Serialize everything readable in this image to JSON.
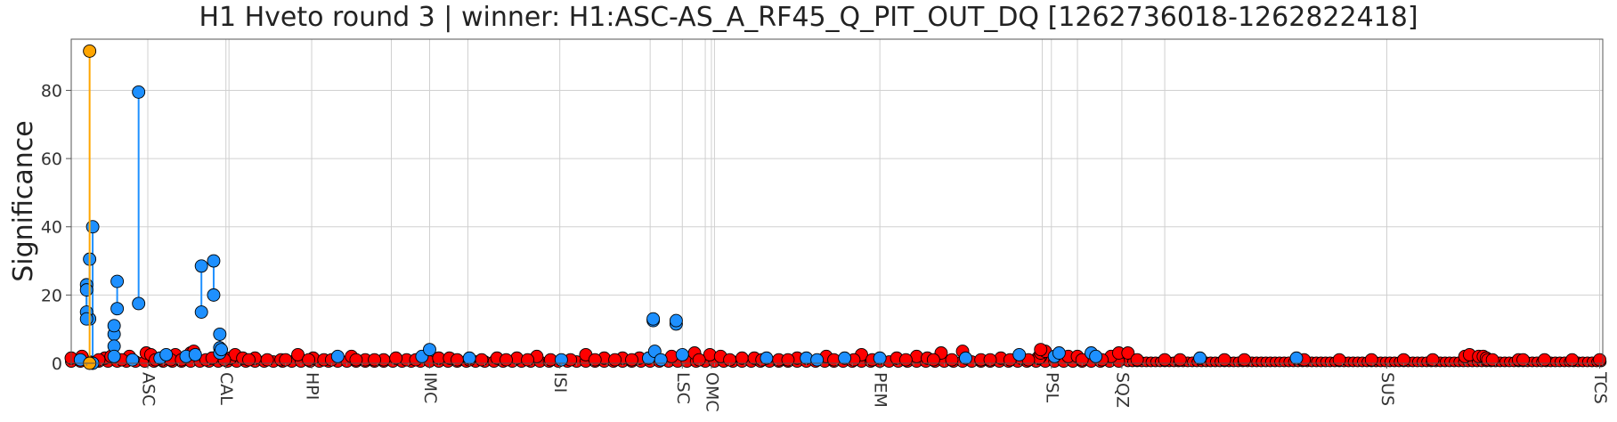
{
  "chart_data": {
    "type": "scatter",
    "title": "H1 Hveto round 3 | winner: H1:ASC-AS_A_RF45_Q_PIT_OUT_DQ [1262736018-1262822418]",
    "ylabel": "Significance",
    "xlabel": "",
    "ylim": [
      0,
      95
    ],
    "yticks": [
      0,
      20,
      40,
      60,
      80
    ],
    "grid": true,
    "colors": {
      "winner": "#ffa500",
      "current_round": "#1e90ff",
      "previous_round": "#ff0000",
      "marker_edge": "#000000",
      "grid": "#d0d0d0"
    },
    "subsystem_groups": [
      "ASC",
      "CAL",
      "HPI",
      "IMC",
      "ISI",
      "LSC",
      "OMC",
      "PEM",
      "PSL",
      "SQZ",
      "SUS",
      "TCS"
    ],
    "x_count": 1000,
    "winner_point": {
      "x": 12,
      "y_previous": 0,
      "y_current": 91.5
    },
    "stems": [
      {
        "x": 14,
        "y_previous": 0,
        "y_current": 40
      },
      {
        "x": 12,
        "y_previous": 13,
        "y_current": 30.5
      },
      {
        "x": 10,
        "y_previous": 15,
        "y_current": 23
      },
      {
        "x": 10,
        "y_previous": 13,
        "y_current": 21.5
      },
      {
        "x": 28,
        "y_previous": 8.5,
        "y_current": 11
      },
      {
        "x": 30,
        "y_previous": 16,
        "y_current": 24
      },
      {
        "x": 44,
        "y_previous": 17.5,
        "y_current": 79.5
      },
      {
        "x": 85,
        "y_previous": 15,
        "y_current": 28.5
      },
      {
        "x": 93,
        "y_previous": 20,
        "y_current": 30
      },
      {
        "x": 97,
        "y_previous": 4.5,
        "y_current": 8.5
      },
      {
        "x": 380,
        "y_previous": 12.5,
        "y_current": 13
      },
      {
        "x": 395,
        "y_previous": 11.5,
        "y_current": 12.5
      }
    ],
    "current_points": [
      {
        "x": 6,
        "y": 1
      },
      {
        "x": 28,
        "y": 5
      },
      {
        "x": 28,
        "y": 2
      },
      {
        "x": 40,
        "y": 1
      },
      {
        "x": 58,
        "y": 1.5
      },
      {
        "x": 62,
        "y": 2.5
      },
      {
        "x": 75,
        "y": 2
      },
      {
        "x": 81,
        "y": 2.5
      },
      {
        "x": 97,
        "y": 3
      },
      {
        "x": 98,
        "y": 4
      },
      {
        "x": 174,
        "y": 2
      },
      {
        "x": 229,
        "y": 2
      },
      {
        "x": 234,
        "y": 4
      },
      {
        "x": 260,
        "y": 1.5
      },
      {
        "x": 320,
        "y": 1
      },
      {
        "x": 377,
        "y": 1.5
      },
      {
        "x": 381,
        "y": 3.5
      },
      {
        "x": 385,
        "y": 1
      },
      {
        "x": 399,
        "y": 2.5
      },
      {
        "x": 454,
        "y": 1.5
      },
      {
        "x": 480,
        "y": 1.5
      },
      {
        "x": 487,
        "y": 1
      },
      {
        "x": 505,
        "y": 1.5
      },
      {
        "x": 528,
        "y": 1.5
      },
      {
        "x": 584,
        "y": 1.5
      },
      {
        "x": 619,
        "y": 2.5
      },
      {
        "x": 642,
        "y": 2
      },
      {
        "x": 645,
        "y": 3
      },
      {
        "x": 666,
        "y": 3
      },
      {
        "x": 669,
        "y": 2
      },
      {
        "x": 737,
        "y": 1.5
      },
      {
        "x": 800,
        "y": 1.5
      }
    ],
    "previous_points": [
      {
        "x": 0,
        "y": 1.5
      },
      {
        "x": 7,
        "y": 2
      },
      {
        "x": 22,
        "y": 1.5
      },
      {
        "x": 26,
        "y": 2
      },
      {
        "x": 38,
        "y": 2
      },
      {
        "x": 49,
        "y": 3
      },
      {
        "x": 52,
        "y": 2.5
      },
      {
        "x": 59,
        "y": 1
      },
      {
        "x": 68,
        "y": 2.5
      },
      {
        "x": 78,
        "y": 3
      },
      {
        "x": 80,
        "y": 3.5
      },
      {
        "x": 88,
        "y": 1
      },
      {
        "x": 104,
        "y": 1.5
      },
      {
        "x": 107,
        "y": 2.5
      },
      {
        "x": 112,
        "y": 1.5
      },
      {
        "x": 120,
        "y": 1.5
      },
      {
        "x": 128,
        "y": 1
      },
      {
        "x": 137,
        "y": 1
      },
      {
        "x": 148,
        "y": 2.5
      },
      {
        "x": 158,
        "y": 1.5
      },
      {
        "x": 165,
        "y": 1
      },
      {
        "x": 183,
        "y": 2
      },
      {
        "x": 192,
        "y": 1
      },
      {
        "x": 204,
        "y": 1
      },
      {
        "x": 219,
        "y": 1
      },
      {
        "x": 240,
        "y": 1.5
      },
      {
        "x": 247,
        "y": 1.5
      },
      {
        "x": 260,
        "y": 1
      },
      {
        "x": 278,
        "y": 1.5
      },
      {
        "x": 291,
        "y": 1.5
      },
      {
        "x": 304,
        "y": 2
      },
      {
        "x": 313,
        "y": 1
      },
      {
        "x": 336,
        "y": 2.5
      },
      {
        "x": 348,
        "y": 1.5
      },
      {
        "x": 360,
        "y": 1.5
      },
      {
        "x": 371,
        "y": 1.5
      },
      {
        "x": 392,
        "y": 2
      },
      {
        "x": 407,
        "y": 3
      },
      {
        "x": 417,
        "y": 2.5
      },
      {
        "x": 424,
        "y": 2
      },
      {
        "x": 438,
        "y": 1.5
      },
      {
        "x": 446,
        "y": 1.5
      },
      {
        "x": 462,
        "y": 1
      },
      {
        "x": 474,
        "y": 1.5
      },
      {
        "x": 493,
        "y": 2
      },
      {
        "x": 516,
        "y": 2.5
      },
      {
        "x": 539,
        "y": 1.5
      },
      {
        "x": 552,
        "y": 2
      },
      {
        "x": 559,
        "y": 1.5
      },
      {
        "x": 568,
        "y": 3
      },
      {
        "x": 582,
        "y": 3.5
      },
      {
        "x": 594,
        "y": 1
      },
      {
        "x": 607,
        "y": 1.5
      },
      {
        "x": 620,
        "y": 1.5
      },
      {
        "x": 631,
        "y": 1.5
      },
      {
        "x": 651,
        "y": 2
      },
      {
        "x": 657,
        "y": 2
      },
      {
        "x": 633,
        "y": 2
      },
      {
        "x": 632,
        "y": 1.5
      },
      {
        "x": 633,
        "y": 3
      },
      {
        "x": 636,
        "y": 3.5
      },
      {
        "x": 633,
        "y": 4
      },
      {
        "x": 679,
        "y": 2
      },
      {
        "x": 684,
        "y": 3
      },
      {
        "x": 690,
        "y": 3
      },
      {
        "x": 696,
        "y": 1
      },
      {
        "x": 714,
        "y": 1
      },
      {
        "x": 724,
        "y": 1
      },
      {
        "x": 753,
        "y": 1
      },
      {
        "x": 766,
        "y": 1
      },
      {
        "x": 805,
        "y": 1
      },
      {
        "x": 828,
        "y": 1
      },
      {
        "x": 849,
        "y": 1
      },
      {
        "x": 870,
        "y": 1
      },
      {
        "x": 889,
        "y": 1
      },
      {
        "x": 910,
        "y": 2
      },
      {
        "x": 913,
        "y": 2.5
      },
      {
        "x": 919,
        "y": 2
      },
      {
        "x": 922,
        "y": 2
      },
      {
        "x": 924,
        "y": 1.5
      },
      {
        "x": 925,
        "y": 1
      },
      {
        "x": 928,
        "y": 1
      },
      {
        "x": 945,
        "y": 1
      },
      {
        "x": 948,
        "y": 1
      },
      {
        "x": 962,
        "y": 1
      },
      {
        "x": 980,
        "y": 1
      },
      {
        "x": 998,
        "y": 1
      },
      {
        "x": 18,
        "y": 1
      },
      {
        "x": 33,
        "y": 1
      },
      {
        "x": 55,
        "y": 1
      },
      {
        "x": 65,
        "y": 1
      },
      {
        "x": 72,
        "y": 1
      },
      {
        "x": 92,
        "y": 1.5
      },
      {
        "x": 100,
        "y": 1
      },
      {
        "x": 116,
        "y": 1
      },
      {
        "x": 140,
        "y": 1
      },
      {
        "x": 155,
        "y": 1
      },
      {
        "x": 170,
        "y": 1
      },
      {
        "x": 186,
        "y": 1
      },
      {
        "x": 198,
        "y": 1
      },
      {
        "x": 212,
        "y": 1.5
      },
      {
        "x": 225,
        "y": 1
      },
      {
        "x": 252,
        "y": 1
      },
      {
        "x": 268,
        "y": 1
      },
      {
        "x": 284,
        "y": 1
      },
      {
        "x": 298,
        "y": 1
      },
      {
        "x": 326,
        "y": 1
      },
      {
        "x": 342,
        "y": 1
      },
      {
        "x": 355,
        "y": 1
      },
      {
        "x": 366,
        "y": 1
      },
      {
        "x": 410,
        "y": 1
      },
      {
        "x": 430,
        "y": 1
      },
      {
        "x": 451,
        "y": 1
      },
      {
        "x": 468,
        "y": 1
      },
      {
        "x": 498,
        "y": 1
      },
      {
        "x": 511,
        "y": 1
      },
      {
        "x": 523,
        "y": 1
      },
      {
        "x": 545,
        "y": 1
      },
      {
        "x": 563,
        "y": 1
      },
      {
        "x": 575,
        "y": 1
      },
      {
        "x": 600,
        "y": 1
      },
      {
        "x": 613,
        "y": 1
      },
      {
        "x": 625,
        "y": 1
      },
      {
        "x": 660,
        "y": 1
      },
      {
        "x": 673,
        "y": 1
      }
    ],
    "ticks": [
      {
        "label": "ASC",
        "x": 50
      },
      {
        "label": "CAL",
        "x": 101
      },
      {
        "label": "HPI",
        "x": 157
      },
      {
        "label": "IMC",
        "x": 234
      },
      {
        "label": "ISI",
        "x": 319
      },
      {
        "label": "LSC",
        "x": 399
      },
      {
        "label": "OMC",
        "x": 418
      },
      {
        "label": "PEM",
        "x": 528
      },
      {
        "label": "PSL",
        "x": 640
      },
      {
        "label": "SQZ",
        "x": 686
      },
      {
        "label": "SUS",
        "x": 859
      },
      {
        "label": "TCS",
        "x": 998
      }
    ],
    "group_boundaries": [
      103,
      209,
      259,
      378,
      414,
      420,
      634,
      657,
      714,
      1000
    ]
  }
}
